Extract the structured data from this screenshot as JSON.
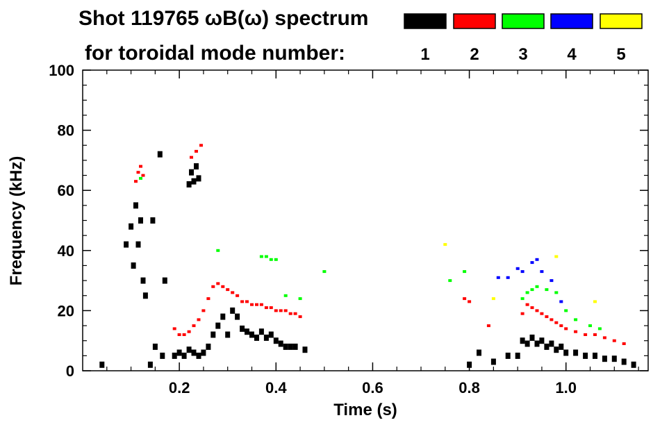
{
  "header": {
    "line1": "Shot 119765 ωB(ω) spectrum",
    "line2": "for toroidal mode number:"
  },
  "legend": [
    {
      "label": "1",
      "color": "#000000"
    },
    {
      "label": "2",
      "color": "#ff0000"
    },
    {
      "label": "3",
      "color": "#00ff00"
    },
    {
      "label": "4",
      "color": "#0000ff"
    },
    {
      "label": "5",
      "color": "#ffff00"
    }
  ],
  "chart_data": {
    "type": "scatter",
    "title": "Shot 119765 ωB(ω) spectrum",
    "xlabel": "Time (s)",
    "ylabel": "Frequency (kHz)",
    "xlim": [
      0.0,
      1.17
    ],
    "ylim": [
      0,
      100
    ],
    "xticks": [
      "0.2",
      "0.4",
      "0.6",
      "0.8",
      "1.0"
    ],
    "xtick_values": [
      0.2,
      0.4,
      0.6,
      0.8,
      1.0
    ],
    "yticks": [
      "0",
      "20",
      "40",
      "60",
      "80",
      "100"
    ],
    "ytick_values": [
      0,
      20,
      40,
      60,
      80,
      100
    ],
    "grid": false,
    "legend_position": "top-right",
    "series": [
      {
        "name": "1",
        "color": "#000000",
        "points": [
          [
            0.04,
            2
          ],
          [
            0.09,
            42
          ],
          [
            0.1,
            48
          ],
          [
            0.105,
            35
          ],
          [
            0.11,
            55
          ],
          [
            0.115,
            42
          ],
          [
            0.12,
            50
          ],
          [
            0.125,
            30
          ],
          [
            0.13,
            25
          ],
          [
            0.14,
            2
          ],
          [
            0.145,
            50
          ],
          [
            0.15,
            8
          ],
          [
            0.16,
            72
          ],
          [
            0.165,
            5
          ],
          [
            0.17,
            30
          ],
          [
            0.22,
            62
          ],
          [
            0.225,
            66
          ],
          [
            0.23,
            63
          ],
          [
            0.235,
            68
          ],
          [
            0.24,
            64
          ],
          [
            0.19,
            5
          ],
          [
            0.2,
            6
          ],
          [
            0.21,
            5
          ],
          [
            0.22,
            7
          ],
          [
            0.23,
            6
          ],
          [
            0.24,
            5
          ],
          [
            0.25,
            6
          ],
          [
            0.26,
            8
          ],
          [
            0.27,
            12
          ],
          [
            0.28,
            15
          ],
          [
            0.29,
            18
          ],
          [
            0.3,
            12
          ],
          [
            0.31,
            20
          ],
          [
            0.32,
            18
          ],
          [
            0.33,
            14
          ],
          [
            0.34,
            13
          ],
          [
            0.35,
            12
          ],
          [
            0.36,
            11
          ],
          [
            0.37,
            13
          ],
          [
            0.38,
            11
          ],
          [
            0.39,
            12
          ],
          [
            0.4,
            10
          ],
          [
            0.41,
            9
          ],
          [
            0.42,
            8
          ],
          [
            0.43,
            8
          ],
          [
            0.44,
            8
          ],
          [
            0.46,
            7
          ],
          [
            0.8,
            2
          ],
          [
            0.82,
            6
          ],
          [
            0.85,
            3
          ],
          [
            0.88,
            5
          ],
          [
            0.9,
            5
          ],
          [
            0.91,
            10
          ],
          [
            0.92,
            9
          ],
          [
            0.93,
            11
          ],
          [
            0.94,
            9
          ],
          [
            0.95,
            10
          ],
          [
            0.96,
            8
          ],
          [
            0.97,
            9
          ],
          [
            0.98,
            7
          ],
          [
            0.99,
            8
          ],
          [
            1.0,
            6
          ],
          [
            1.02,
            6
          ],
          [
            1.04,
            5
          ],
          [
            1.06,
            5
          ],
          [
            1.08,
            4
          ],
          [
            1.1,
            4
          ],
          [
            1.12,
            3
          ],
          [
            1.14,
            2
          ]
        ]
      },
      {
        "name": "2",
        "color": "#ff0000",
        "points": [
          [
            0.11,
            63
          ],
          [
            0.115,
            66
          ],
          [
            0.12,
            68
          ],
          [
            0.125,
            65
          ],
          [
            0.225,
            71
          ],
          [
            0.235,
            73
          ],
          [
            0.245,
            75
          ],
          [
            0.19,
            14
          ],
          [
            0.2,
            12
          ],
          [
            0.21,
            12
          ],
          [
            0.22,
            13
          ],
          [
            0.23,
            15
          ],
          [
            0.24,
            17
          ],
          [
            0.25,
            20
          ],
          [
            0.26,
            24
          ],
          [
            0.27,
            28
          ],
          [
            0.28,
            29
          ],
          [
            0.29,
            28
          ],
          [
            0.3,
            27
          ],
          [
            0.31,
            26
          ],
          [
            0.32,
            25
          ],
          [
            0.33,
            23
          ],
          [
            0.34,
            23
          ],
          [
            0.35,
            22
          ],
          [
            0.36,
            22
          ],
          [
            0.37,
            22
          ],
          [
            0.38,
            21
          ],
          [
            0.39,
            21
          ],
          [
            0.4,
            20
          ],
          [
            0.41,
            20
          ],
          [
            0.42,
            20
          ],
          [
            0.43,
            19
          ],
          [
            0.44,
            19
          ],
          [
            0.45,
            18
          ],
          [
            0.79,
            24
          ],
          [
            0.8,
            23
          ],
          [
            0.84,
            15
          ],
          [
            0.91,
            19
          ],
          [
            0.92,
            22
          ],
          [
            0.93,
            21
          ],
          [
            0.94,
            20
          ],
          [
            0.95,
            19
          ],
          [
            0.96,
            18
          ],
          [
            0.97,
            17
          ],
          [
            0.98,
            16
          ],
          [
            0.99,
            15
          ],
          [
            1.0,
            14
          ],
          [
            1.02,
            13
          ],
          [
            1.04,
            12
          ],
          [
            1.06,
            12
          ],
          [
            1.08,
            11
          ],
          [
            1.1,
            10
          ],
          [
            1.12,
            9
          ]
        ]
      },
      {
        "name": "3",
        "color": "#00ff00",
        "points": [
          [
            0.12,
            64
          ],
          [
            0.28,
            40
          ],
          [
            0.37,
            38
          ],
          [
            0.38,
            38
          ],
          [
            0.39,
            37
          ],
          [
            0.4,
            37
          ],
          [
            0.42,
            25
          ],
          [
            0.45,
            24
          ],
          [
            0.5,
            33
          ],
          [
            0.76,
            30
          ],
          [
            0.79,
            33
          ],
          [
            0.91,
            24
          ],
          [
            0.92,
            26
          ],
          [
            0.93,
            27
          ],
          [
            0.94,
            28
          ],
          [
            0.96,
            27
          ],
          [
            0.98,
            26
          ],
          [
            1.0,
            20
          ],
          [
            1.02,
            17
          ],
          [
            1.05,
            15
          ],
          [
            1.07,
            14
          ]
        ]
      },
      {
        "name": "4",
        "color": "#0000ff",
        "points": [
          [
            0.86,
            31
          ],
          [
            0.88,
            31
          ],
          [
            0.9,
            34
          ],
          [
            0.91,
            33
          ],
          [
            0.93,
            36
          ],
          [
            0.94,
            37
          ],
          [
            0.95,
            33
          ],
          [
            0.97,
            30
          ],
          [
            0.99,
            23
          ]
        ]
      },
      {
        "name": "5",
        "color": "#ffff00",
        "points": [
          [
            0.75,
            42
          ],
          [
            0.85,
            24
          ],
          [
            0.98,
            38
          ],
          [
            1.06,
            23
          ]
        ]
      }
    ]
  }
}
